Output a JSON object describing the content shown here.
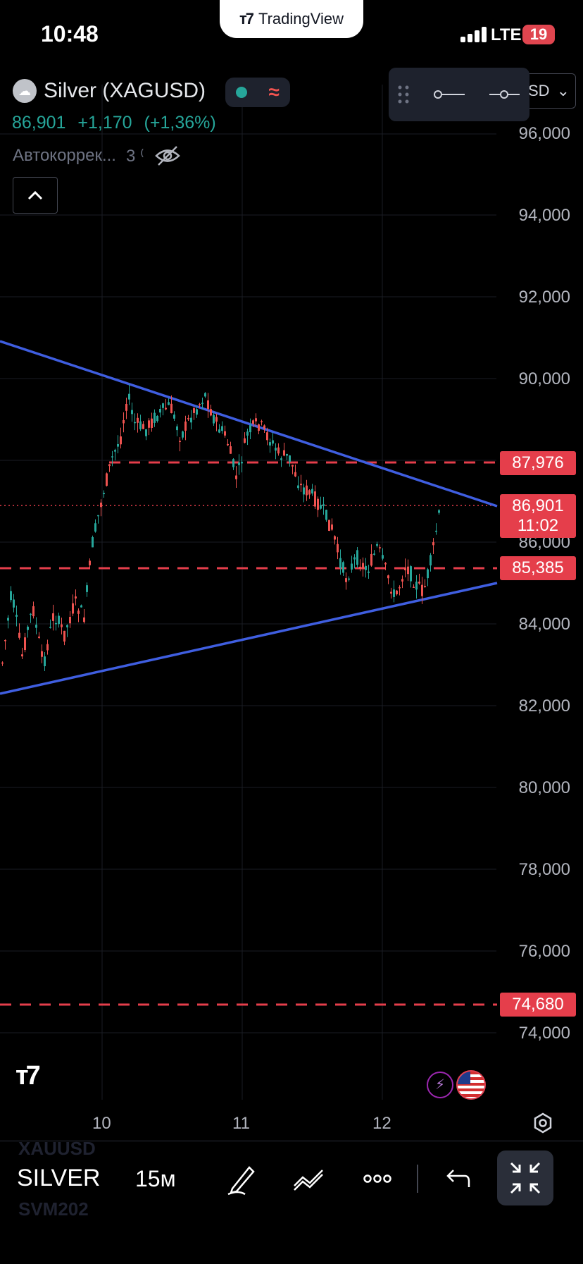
{
  "status_bar": {
    "time": "10:48",
    "network": "LTE",
    "battery": "19"
  },
  "brand_pill": {
    "label": "TradingView"
  },
  "legend": {
    "symbol": "Silver (XAGUSD)",
    "last": "86,901",
    "change": "+1,170",
    "change_pct": "(+1,36%)",
    "indicator": "Автокоррек...",
    "indicator_value": "3 ⁽"
  },
  "currency_button": {
    "label": "SD"
  },
  "price_axis": [
    "96,000",
    "94,000",
    "92,000",
    "90,000",
    "86,000",
    "84,000",
    "82,000",
    "80,000",
    "78,000",
    "76,000",
    "74,000"
  ],
  "price_tags": {
    "level_high": "87,976",
    "current": "86,901",
    "countdown": "11:02",
    "level_mid": "85,385",
    "level_low": "74,680"
  },
  "time_axis": [
    "10",
    "11",
    "12"
  ],
  "bottom_bar": {
    "symbol": "SILVER",
    "interval": "15м",
    "watermark_top": "XAUUSD",
    "watermark_bottom": "SVM202"
  },
  "colors": {
    "up": "#26a69a",
    "down": "#ef5350",
    "trendline": "#3f5ee0",
    "level": "#e53e4b",
    "background": "#000000"
  },
  "icons": [
    "drawing-pen-icon",
    "chart-type-icon",
    "more-icon",
    "undo-icon",
    "fullscreen-exit-icon",
    "settings-icon",
    "eye-off-icon",
    "chevron-up-icon",
    "lightning-icon",
    "us-flag-icon"
  ]
}
